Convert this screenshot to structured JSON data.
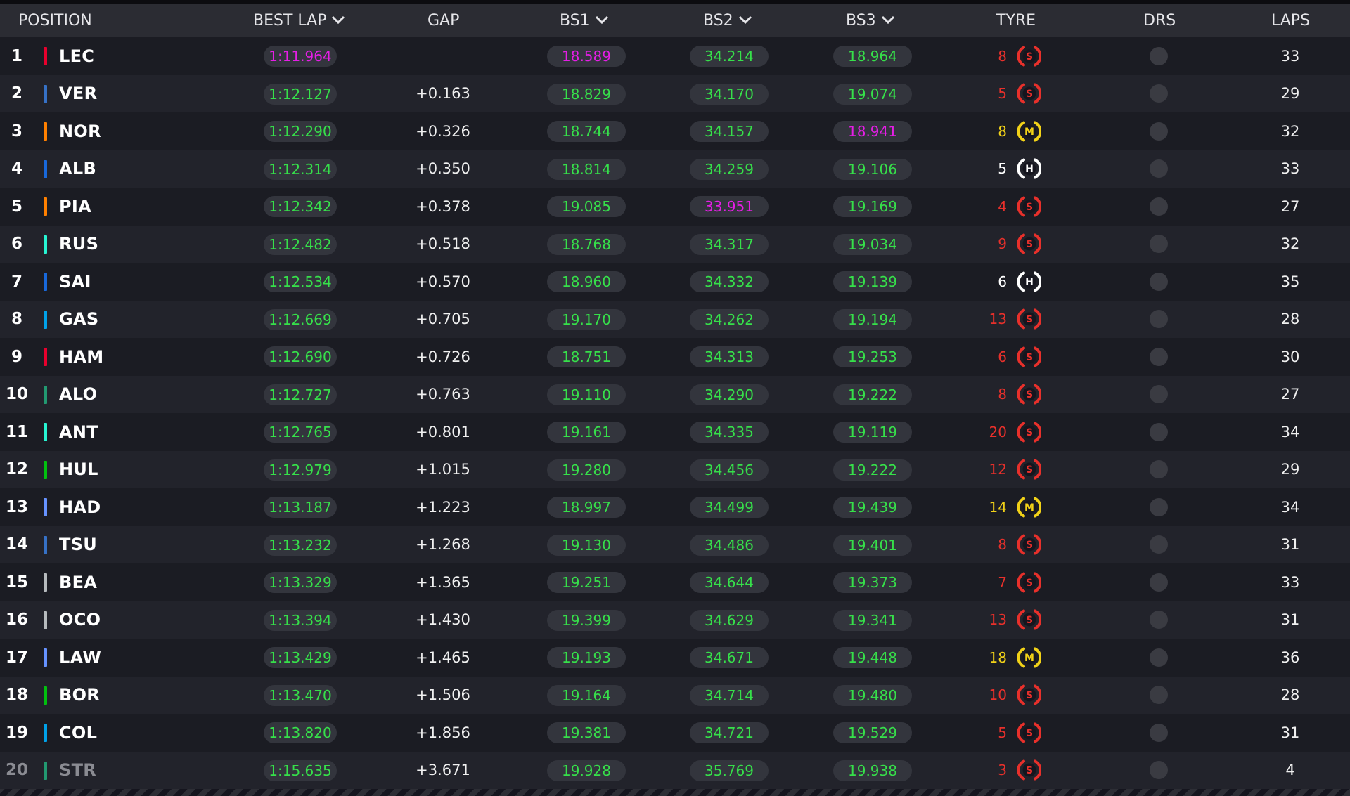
{
  "header": {
    "position": "POSITION",
    "best_lap": "BEST LAP",
    "gap": "GAP",
    "bs1": "BS1",
    "bs2": "BS2",
    "bs3": "BS3",
    "tyre": "TYRE",
    "drs": "DRS",
    "laps": "LAPS"
  },
  "colors": {
    "green": "#36e04a",
    "purple": "#e61ee6",
    "soft": "#e8302b",
    "medium": "#f2d218",
    "hard": "#ffffff"
  },
  "rows": [
    {
      "pos": "1",
      "code": "LEC",
      "team_color": "#e8002d",
      "best": "1:11.964",
      "best_color": "purple",
      "gap": "",
      "bs1": "18.589",
      "bs1_color": "purple",
      "bs2": "34.214",
      "bs2_color": "green",
      "bs3": "18.964",
      "bs3_color": "green",
      "tyre_age": "8",
      "tyre": "S",
      "laps": "33"
    },
    {
      "pos": "2",
      "code": "VER",
      "team_color": "#3671c6",
      "best": "1:12.127",
      "best_color": "green",
      "gap": "+0.163",
      "bs1": "18.829",
      "bs1_color": "green",
      "bs2": "34.170",
      "bs2_color": "green",
      "bs3": "19.074",
      "bs3_color": "green",
      "tyre_age": "5",
      "tyre": "S",
      "laps": "29"
    },
    {
      "pos": "3",
      "code": "NOR",
      "team_color": "#ff8000",
      "best": "1:12.290",
      "best_color": "green",
      "gap": "+0.326",
      "bs1": "18.744",
      "bs1_color": "green",
      "bs2": "34.157",
      "bs2_color": "green",
      "bs3": "18.941",
      "bs3_color": "purple",
      "tyre_age": "8",
      "tyre": "M",
      "laps": "32"
    },
    {
      "pos": "4",
      "code": "ALB",
      "team_color": "#1868db",
      "best": "1:12.314",
      "best_color": "green",
      "gap": "+0.350",
      "bs1": "18.814",
      "bs1_color": "green",
      "bs2": "34.259",
      "bs2_color": "green",
      "bs3": "19.106",
      "bs3_color": "green",
      "tyre_age": "5",
      "tyre": "H",
      "laps": "33"
    },
    {
      "pos": "5",
      "code": "PIA",
      "team_color": "#ff8000",
      "best": "1:12.342",
      "best_color": "green",
      "gap": "+0.378",
      "bs1": "19.085",
      "bs1_color": "green",
      "bs2": "33.951",
      "bs2_color": "purple",
      "bs3": "19.169",
      "bs3_color": "green",
      "tyre_age": "4",
      "tyre": "S",
      "laps": "27"
    },
    {
      "pos": "6",
      "code": "RUS",
      "team_color": "#27f4d2",
      "best": "1:12.482",
      "best_color": "green",
      "gap": "+0.518",
      "bs1": "18.768",
      "bs1_color": "green",
      "bs2": "34.317",
      "bs2_color": "green",
      "bs3": "19.034",
      "bs3_color": "green",
      "tyre_age": "9",
      "tyre": "S",
      "laps": "32"
    },
    {
      "pos": "7",
      "code": "SAI",
      "team_color": "#1868db",
      "best": "1:12.534",
      "best_color": "green",
      "gap": "+0.570",
      "bs1": "18.960",
      "bs1_color": "green",
      "bs2": "34.332",
      "bs2_color": "green",
      "bs3": "19.139",
      "bs3_color": "green",
      "tyre_age": "6",
      "tyre": "H",
      "laps": "35"
    },
    {
      "pos": "8",
      "code": "GAS",
      "team_color": "#00a1e8",
      "best": "1:12.669",
      "best_color": "green",
      "gap": "+0.705",
      "bs1": "19.170",
      "bs1_color": "green",
      "bs2": "34.262",
      "bs2_color": "green",
      "bs3": "19.194",
      "bs3_color": "green",
      "tyre_age": "13",
      "tyre": "S",
      "laps": "28"
    },
    {
      "pos": "9",
      "code": "HAM",
      "team_color": "#e8002d",
      "best": "1:12.690",
      "best_color": "green",
      "gap": "+0.726",
      "bs1": "18.751",
      "bs1_color": "green",
      "bs2": "34.313",
      "bs2_color": "green",
      "bs3": "19.253",
      "bs3_color": "green",
      "tyre_age": "6",
      "tyre": "S",
      "laps": "30"
    },
    {
      "pos": "10",
      "code": "ALO",
      "team_color": "#229971",
      "best": "1:12.727",
      "best_color": "green",
      "gap": "+0.763",
      "bs1": "19.110",
      "bs1_color": "green",
      "bs2": "34.290",
      "bs2_color": "green",
      "bs3": "19.222",
      "bs3_color": "green",
      "tyre_age": "8",
      "tyre": "S",
      "laps": "27"
    },
    {
      "pos": "11",
      "code": "ANT",
      "team_color": "#27f4d2",
      "best": "1:12.765",
      "best_color": "green",
      "gap": "+0.801",
      "bs1": "19.161",
      "bs1_color": "green",
      "bs2": "34.335",
      "bs2_color": "green",
      "bs3": "19.119",
      "bs3_color": "green",
      "tyre_age": "20",
      "tyre": "S",
      "laps": "34"
    },
    {
      "pos": "12",
      "code": "HUL",
      "team_color": "#01c00e",
      "best": "1:12.979",
      "best_color": "green",
      "gap": "+1.015",
      "bs1": "19.280",
      "bs1_color": "green",
      "bs2": "34.456",
      "bs2_color": "green",
      "bs3": "19.222",
      "bs3_color": "green",
      "tyre_age": "12",
      "tyre": "S",
      "laps": "29"
    },
    {
      "pos": "13",
      "code": "HAD",
      "team_color": "#6692ff",
      "best": "1:13.187",
      "best_color": "green",
      "gap": "+1.223",
      "bs1": "18.997",
      "bs1_color": "green",
      "bs2": "34.499",
      "bs2_color": "green",
      "bs3": "19.439",
      "bs3_color": "green",
      "tyre_age": "14",
      "tyre": "M",
      "laps": "34"
    },
    {
      "pos": "14",
      "code": "TSU",
      "team_color": "#3671c6",
      "best": "1:13.232",
      "best_color": "green",
      "gap": "+1.268",
      "bs1": "19.130",
      "bs1_color": "green",
      "bs2": "34.486",
      "bs2_color": "green",
      "bs3": "19.401",
      "bs3_color": "green",
      "tyre_age": "8",
      "tyre": "S",
      "laps": "31"
    },
    {
      "pos": "15",
      "code": "BEA",
      "team_color": "#b6babd",
      "best": "1:13.329",
      "best_color": "green",
      "gap": "+1.365",
      "bs1": "19.251",
      "bs1_color": "green",
      "bs2": "34.644",
      "bs2_color": "green",
      "bs3": "19.373",
      "bs3_color": "green",
      "tyre_age": "7",
      "tyre": "S",
      "laps": "33"
    },
    {
      "pos": "16",
      "code": "OCO",
      "team_color": "#b6babd",
      "best": "1:13.394",
      "best_color": "green",
      "gap": "+1.430",
      "bs1": "19.399",
      "bs1_color": "green",
      "bs2": "34.629",
      "bs2_color": "green",
      "bs3": "19.341",
      "bs3_color": "green",
      "tyre_age": "13",
      "tyre": "S",
      "laps": "31"
    },
    {
      "pos": "17",
      "code": "LAW",
      "team_color": "#6692ff",
      "best": "1:13.429",
      "best_color": "green",
      "gap": "+1.465",
      "bs1": "19.193",
      "bs1_color": "green",
      "bs2": "34.671",
      "bs2_color": "green",
      "bs3": "19.448",
      "bs3_color": "green",
      "tyre_age": "18",
      "tyre": "M",
      "laps": "36"
    },
    {
      "pos": "18",
      "code": "BOR",
      "team_color": "#01c00e",
      "best": "1:13.470",
      "best_color": "green",
      "gap": "+1.506",
      "bs1": "19.164",
      "bs1_color": "green",
      "bs2": "34.714",
      "bs2_color": "green",
      "bs3": "19.480",
      "bs3_color": "green",
      "tyre_age": "10",
      "tyre": "S",
      "laps": "28"
    },
    {
      "pos": "19",
      "code": "COL",
      "team_color": "#00a1e8",
      "best": "1:13.820",
      "best_color": "green",
      "gap": "+1.856",
      "bs1": "19.381",
      "bs1_color": "green",
      "bs2": "34.721",
      "bs2_color": "green",
      "bs3": "19.529",
      "bs3_color": "green",
      "tyre_age": "5",
      "tyre": "S",
      "laps": "31"
    },
    {
      "pos": "20",
      "code": "STR",
      "team_color": "#229971",
      "best": "1:15.635",
      "best_color": "green",
      "gap": "+3.671",
      "bs1": "19.928",
      "bs1_color": "green",
      "bs2": "35.769",
      "bs2_color": "green",
      "bs3": "19.938",
      "bs3_color": "green",
      "tyre_age": "3",
      "tyre": "S",
      "laps": "4",
      "dimmed": true
    }
  ]
}
